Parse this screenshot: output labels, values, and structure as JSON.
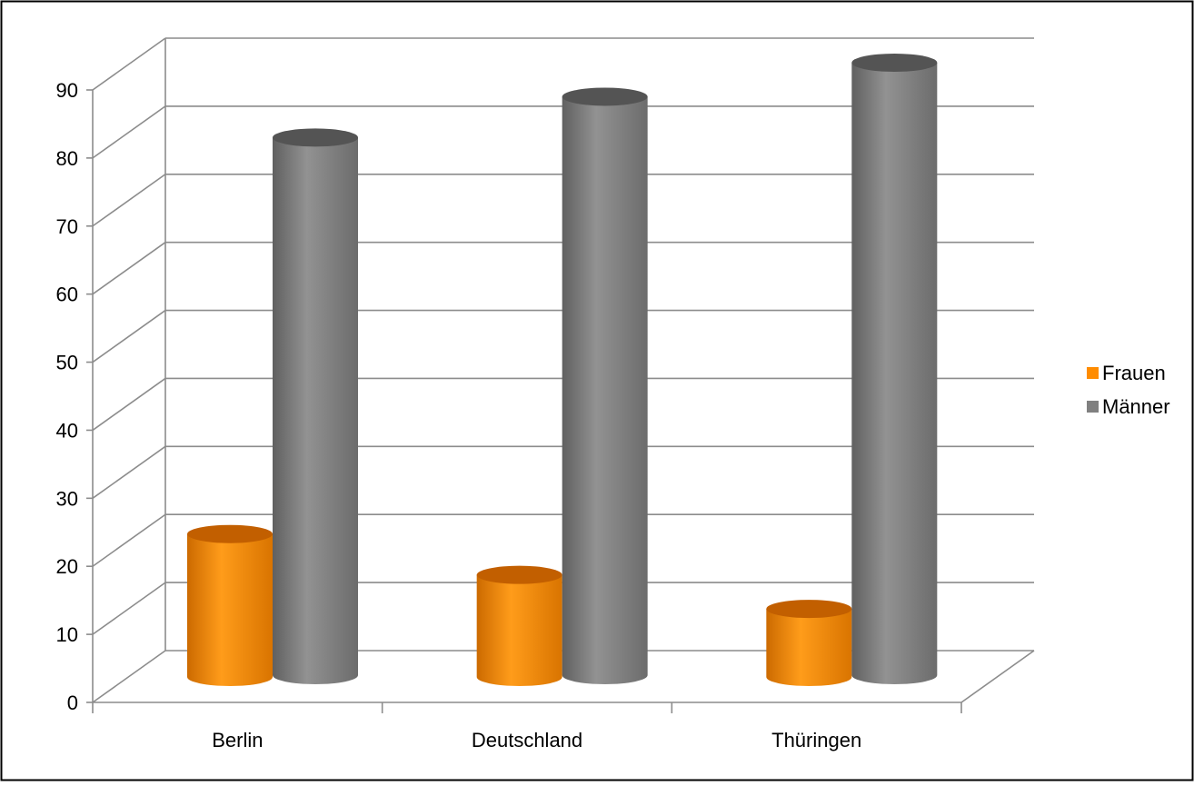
{
  "chart_data": {
    "type": "bar",
    "categories": [
      "Berlin",
      "Deutschland",
      "Thüringen"
    ],
    "series": [
      {
        "name": "Frauen",
        "values": [
          21,
          15,
          10
        ],
        "color": "#ff8c00"
      },
      {
        "name": "Männer",
        "values": [
          79,
          85,
          90
        ],
        "color": "#808080"
      }
    ],
    "ylim": [
      0,
      90
    ],
    "yticks": [
      0,
      10,
      20,
      30,
      40,
      50,
      60,
      70,
      80,
      90
    ],
    "grid": true,
    "legend_position": "right",
    "style": "3d-cylinder"
  }
}
